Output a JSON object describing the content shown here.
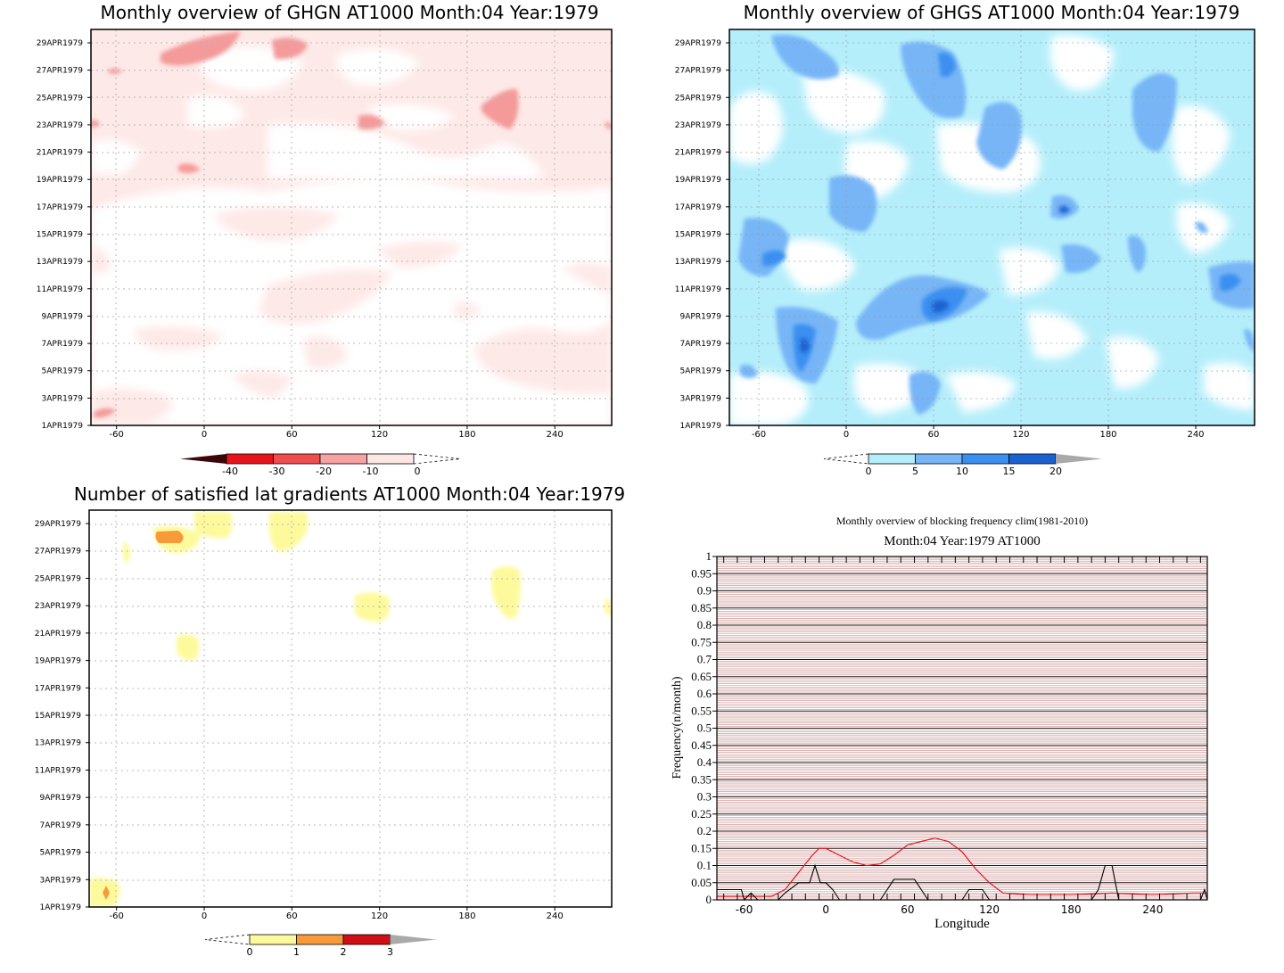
{
  "panels": [
    {
      "title": "Monthly overview of GHGN AT1000 Month:04 Year:1979",
      "dates": [
        "1APR1979",
        "3APR1979",
        "5APR1979",
        "7APR1979",
        "9APR1979",
        "11APR1979",
        "13APR1979",
        "15APR1979",
        "17APR1979",
        "19APR1979",
        "21APR1979",
        "23APR1979",
        "25APR1979",
        "27APR1979",
        "29APR1979"
      ],
      "xticks": [
        "-60",
        "0",
        "60",
        "120",
        "180",
        "240"
      ],
      "colorbar": {
        "labels": [
          "-40",
          "-30",
          "-20",
          "-10",
          "0"
        ],
        "colors": [
          "#5a0a0a",
          "#e8141c",
          "#f04e4e",
          "#f7a2a2",
          "#fde7e5"
        ],
        "left_arrow": "#3a0808",
        "right_open": true
      }
    },
    {
      "title": "Monthly overview of GHGS AT1000 Month:04 Year:1979",
      "dates": [
        "1APR1979",
        "3APR1979",
        "5APR1979",
        "7APR1979",
        "9APR1979",
        "11APR1979",
        "13APR1979",
        "15APR1979",
        "17APR1979",
        "19APR1979",
        "21APR1979",
        "23APR1979",
        "25APR1979",
        "27APR1979",
        "29APR1979"
      ],
      "xticks": [
        "-60",
        "0",
        "60",
        "120",
        "180",
        "240"
      ],
      "colorbar": {
        "labels": [
          "0",
          "5",
          "10",
          "15",
          "20"
        ],
        "colors": [
          "#b4eefa",
          "#77b5f7",
          "#3a8ff0",
          "#1a62d1"
        ],
        "right_arrow": "#a9a9a9",
        "left_open": true
      }
    },
    {
      "title": "Number of satisfied lat gradients AT1000 Month:04 Year:1979",
      "dates": [
        "1APR1979",
        "3APR1979",
        "5APR1979",
        "7APR1979",
        "9APR1979",
        "11APR1979",
        "13APR1979",
        "15APR1979",
        "17APR1979",
        "19APR1979",
        "21APR1979",
        "23APR1979",
        "25APR1979",
        "27APR1979",
        "29APR1979"
      ],
      "xticks": [
        "-60",
        "0",
        "60",
        "120",
        "180",
        "240"
      ],
      "colorbar": {
        "labels": [
          "0",
          "1",
          "2",
          "3"
        ],
        "colors": [
          "#fdfa9c",
          "#f89a3a",
          "#d10d15"
        ],
        "right_arrow": "#a9a9a9",
        "left_open": true
      }
    }
  ],
  "line_chart": {
    "suptitle": "Monthly overview of blocking frequency clim(1981-2010)",
    "title": "Month:04 Year:1979  AT1000",
    "xlabel": "Longitude",
    "ylabel": "Frequency(n/month)",
    "xticks": [
      "-60",
      "0",
      "60",
      "120",
      "180",
      "240"
    ],
    "yticks": [
      "0",
      "0.05",
      "0.1",
      "0.15",
      "0.2",
      "0.25",
      "0.3",
      "0.35",
      "0.4",
      "0.45",
      "0.5",
      "0.55",
      "0.6",
      "0.65",
      "0.7",
      "0.75",
      "0.8",
      "0.85",
      "0.9",
      "0.95",
      "1"
    ]
  },
  "chart_data": [
    {
      "type": "heatmap",
      "title": "Monthly overview of GHGN AT1000 Month:04 Year:1979",
      "x_range": [
        -80,
        290
      ],
      "y_dates": [
        "1APR1979",
        "30APR1979"
      ],
      "colorbar_levels": [
        -40,
        -30,
        -20,
        -10,
        0
      ],
      "regions": [
        {
          "lon": [
            -60,
            -10
          ],
          "date": [
            "27APR1979",
            "30APR1979"
          ],
          "level": -20
        },
        {
          "lon": [
            45,
            70
          ],
          "date": [
            "28APR1979",
            "29APR1979"
          ],
          "level": -20
        },
        {
          "lon": [
            198,
            215
          ],
          "date": [
            "23APR1979",
            "25APR1979"
          ],
          "level": -20
        },
        {
          "lon": [
            100,
            120
          ],
          "date": [
            "23APR1979",
            "23APR1979"
          ],
          "level": -20
        },
        {
          "lon": [
            -20,
            -5
          ],
          "date": [
            "20APR1979",
            "20APR1979"
          ],
          "level": -20
        },
        {
          "lon": [
            -80,
            -65
          ],
          "date": [
            "1APR1979",
            "2APR1979"
          ],
          "level": -20
        }
      ]
    },
    {
      "type": "heatmap",
      "title": "Monthly overview of GHGS AT1000 Month:04 Year:1979",
      "x_range": [
        -80,
        290
      ],
      "y_dates": [
        "1APR1979",
        "30APR1979"
      ],
      "colorbar_levels": [
        0,
        5,
        10,
        15,
        20
      ],
      "regions": [
        {
          "lon": [
            50,
            70
          ],
          "date": [
            "10APR1979",
            "12APR1979"
          ],
          "level": 15
        },
        {
          "lon": [
            -35,
            -20
          ],
          "date": [
            "5APR1979",
            "8APR1979"
          ],
          "level": 15
        },
        {
          "lon": [
            -55,
            -45
          ],
          "date": [
            "13APR1979",
            "14APR1979"
          ],
          "level": 15
        },
        {
          "lon": [
            265,
            280
          ],
          "date": [
            "11APR1979",
            "12APR1979"
          ],
          "level": 15
        },
        {
          "lon": [
            60,
            75
          ],
          "date": [
            "26APR1979",
            "29APR1979"
          ],
          "level": 15
        }
      ]
    },
    {
      "type": "heatmap",
      "title": "Number of satisfied lat gradients AT1000 Month:04 Year:1979",
      "x_range": [
        -80,
        290
      ],
      "y_dates": [
        "1APR1979",
        "30APR1979"
      ],
      "colorbar_levels": [
        0,
        1,
        2,
        3
      ],
      "regions": [
        {
          "lon": [
            -35,
            -5
          ],
          "date": [
            "28APR1979",
            "29APR1979"
          ],
          "value": 2
        },
        {
          "lon": [
            -10,
            20
          ],
          "date": [
            "29APR1979",
            "30APR1979"
          ],
          "value": 1
        },
        {
          "lon": [
            45,
            70
          ],
          "date": [
            "28APR1979",
            "30APR1979"
          ],
          "value": 1
        },
        {
          "lon": [
            105,
            125
          ],
          "date": [
            "23APR1979",
            "23APR1979"
          ],
          "value": 1
        },
        {
          "lon": [
            195,
            215
          ],
          "date": [
            "23APR1979",
            "25APR1979"
          ],
          "value": 1
        },
        {
          "lon": [
            -20,
            -5
          ],
          "date": [
            "20APR1979",
            "21APR1979"
          ],
          "value": 1
        },
        {
          "lon": [
            -80,
            -60
          ],
          "date": [
            "1APR1979",
            "2APR1979"
          ],
          "value": 1
        },
        {
          "lon": [
            -72,
            -68
          ],
          "date": [
            "1APR1979",
            "2APR1979"
          ],
          "value": 2
        }
      ]
    },
    {
      "type": "line",
      "title": "Month:04 Year:1979  AT1000",
      "xlabel": "Longitude",
      "ylabel": "Frequency(n/month)",
      "xlim": [
        -80,
        280
      ],
      "ylim": [
        0,
        1
      ],
      "series": [
        {
          "color": "#e8141c",
          "x": [
            -80,
            -60,
            -40,
            -30,
            -20,
            -10,
            -5,
            0,
            10,
            20,
            30,
            40,
            50,
            60,
            70,
            80,
            90,
            100,
            110,
            120,
            130,
            150,
            180,
            210,
            240,
            270,
            280
          ],
          "y": [
            0.01,
            0.01,
            0.01,
            0.03,
            0.08,
            0.13,
            0.15,
            0.15,
            0.13,
            0.11,
            0.1,
            0.105,
            0.13,
            0.16,
            0.17,
            0.18,
            0.17,
            0.14,
            0.09,
            0.05,
            0.02,
            0.015,
            0.015,
            0.02,
            0.015,
            0.02,
            0.02
          ]
        },
        {
          "color": "#000000",
          "x": [
            -80,
            -62,
            -60,
            -55,
            -50,
            -35,
            -30,
            -20,
            -12,
            -8,
            -4,
            0,
            5,
            10,
            20,
            40,
            45,
            50,
            55,
            60,
            65,
            70,
            75,
            80,
            100,
            105,
            110,
            115,
            120,
            130,
            195,
            200,
            205,
            210,
            215,
            275,
            278,
            280
          ],
          "y": [
            0.03,
            0.03,
            0,
            0.02,
            0,
            0,
            0.02,
            0.05,
            0.05,
            0.1,
            0.05,
            0.05,
            0.03,
            0,
            0,
            0,
            0.03,
            0.06,
            0.06,
            0.06,
            0.06,
            0.03,
            0,
            0,
            0,
            0.03,
            0.03,
            0.03,
            0,
            0,
            0,
            0.03,
            0.1,
            0.1,
            0,
            0,
            0.03,
            0
          ]
        }
      ]
    }
  ]
}
